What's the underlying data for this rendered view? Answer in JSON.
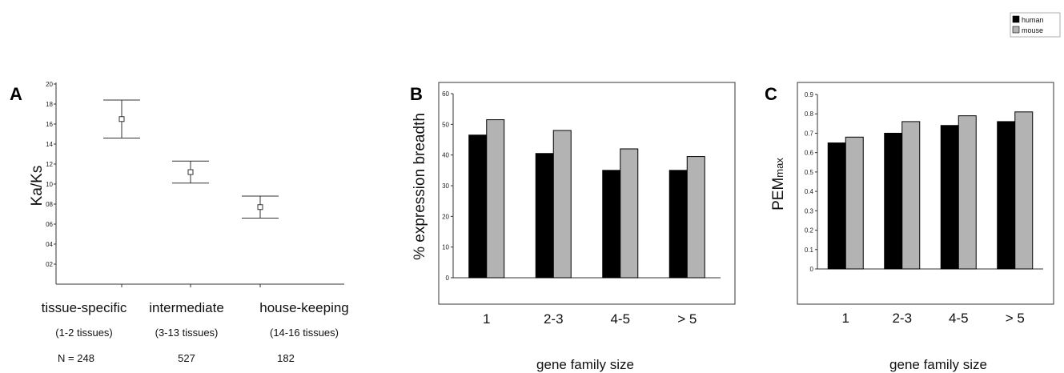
{
  "legend": {
    "placement": "top-right",
    "items": [
      {
        "name": "human",
        "color": "#000000"
      },
      {
        "name": "mouse",
        "color": "#b3b3b3"
      }
    ]
  },
  "colors": {
    "human": "#000000",
    "mouse": "#b3b3b3",
    "frame": "#333333"
  },
  "chart_data": [
    {
      "panel": "A",
      "type": "scatter",
      "ylabel": "Ka/Ks",
      "y_tick_labels": [
        "20",
        "18",
        "16",
        "14",
        "12",
        "10",
        "08",
        "06",
        "04",
        "02"
      ],
      "categories": [
        "tissue-specific",
        "intermediate",
        "house-keeping"
      ],
      "sublabels": [
        "(1-2 tissues)",
        "(3-13 tissues)",
        "(14-16 tissues)"
      ],
      "counts": [
        "N = 248",
        "527",
        "182"
      ],
      "means": [
        0.165,
        0.112,
        0.077
      ],
      "error_low": [
        0.146,
        0.101,
        0.066
      ],
      "error_high": [
        0.184,
        0.123,
        0.088
      ],
      "ylim": [
        0,
        0.2
      ],
      "grid": false
    },
    {
      "panel": "B",
      "type": "bar",
      "ylabel": "% expression breadth",
      "xlabel": "gene family size",
      "categories": [
        "1",
        "2-3",
        "4-5",
        "> 5"
      ],
      "y_ticks": [
        0,
        10,
        20,
        30,
        40,
        50,
        60
      ],
      "ylim": [
        0,
        60
      ],
      "grid": false,
      "series": [
        {
          "name": "human",
          "values": [
            46.5,
            40.5,
            35,
            35
          ]
        },
        {
          "name": "mouse",
          "values": [
            51.5,
            48,
            42,
            39.5
          ]
        }
      ]
    },
    {
      "panel": "C",
      "type": "bar",
      "ylabel": "PEMmax",
      "ylabel_parts": [
        "PEM",
        "max"
      ],
      "xlabel": "gene family size",
      "categories": [
        "1",
        "2-3",
        "4-5",
        "> 5"
      ],
      "y_ticks": [
        0,
        0.1,
        0.2,
        0.3,
        0.4,
        0.5,
        0.6,
        0.7,
        0.8,
        0.9
      ],
      "ylim": [
        0,
        0.9
      ],
      "grid": false,
      "series": [
        {
          "name": "human",
          "values": [
            0.65,
            0.7,
            0.74,
            0.76
          ]
        },
        {
          "name": "mouse",
          "values": [
            0.68,
            0.76,
            0.79,
            0.81
          ]
        }
      ]
    }
  ]
}
